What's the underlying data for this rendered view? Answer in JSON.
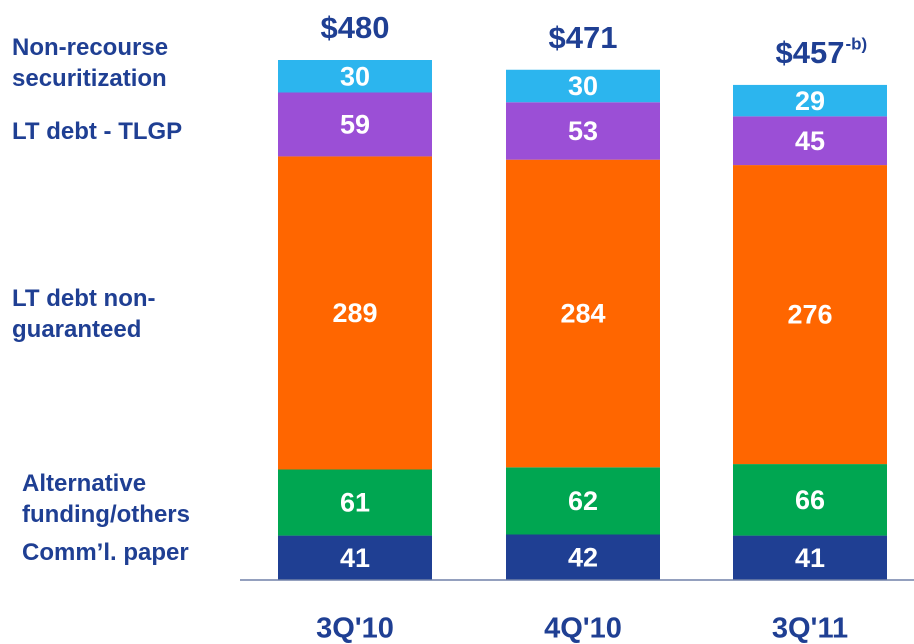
{
  "chart_data": {
    "type": "stacked_bar",
    "categories": [
      "3Q'10",
      "4Q'10",
      "3Q'11"
    ],
    "series": [
      {
        "name": "Comm’l. paper",
        "color": "#1f3f93",
        "values": [
          41,
          42,
          41
        ]
      },
      {
        "name": "Alternative funding/others",
        "color": "#00a651",
        "values": [
          61,
          62,
          66
        ]
      },
      {
        "name": "LT debt non-guaranteed",
        "color": "#ff6600",
        "values": [
          289,
          284,
          276
        ]
      },
      {
        "name": "LT debt - TLGP",
        "color": "#9b4fd6",
        "values": [
          59,
          53,
          45
        ]
      },
      {
        "name": "Non-recourse securitization",
        "color": "#2cb5ee",
        "values": [
          30,
          30,
          29
        ]
      }
    ],
    "total_labels": [
      "$480",
      "$471",
      "$457"
    ],
    "total_notes": [
      null,
      null,
      "-b)"
    ]
  }
}
